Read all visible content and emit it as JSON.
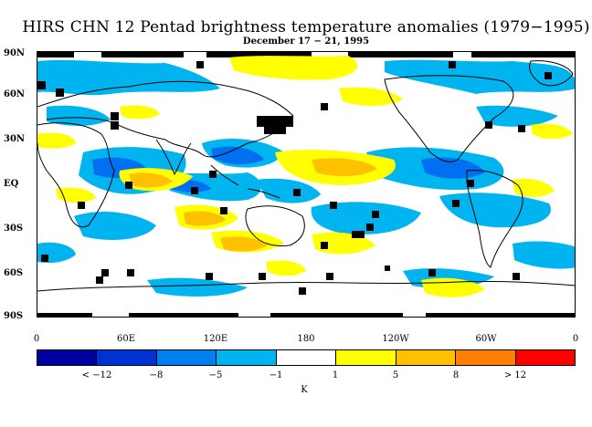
{
  "title": "HIRS CHN 12 Pentad brightness temperature anomalies (1979−1995)",
  "subtitle": "December 17 − 21, 1995",
  "lat_labels": [
    "90N",
    "60N",
    "30N",
    "EQ",
    "30S",
    "60S",
    "90S"
  ],
  "lon_labels": [
    "0",
    "60E",
    "120E",
    "180",
    "120W",
    "60W",
    "0"
  ],
  "colorbar": {
    "colors": [
      "#0000a0",
      "#0032d2",
      "#0080f0",
      "#00b4f0",
      "#ffffff",
      "#ffff00",
      "#ffc000",
      "#ff8000",
      "#ff0000"
    ],
    "labels": [
      "< −12",
      "−8",
      "−5",
      "−1",
      "1",
      "5",
      "8",
      "> 12"
    ],
    "unit": "K"
  },
  "colors": {
    "cold_strong": "#0070f0",
    "cold": "#00b4f0",
    "warm": "#ffff00",
    "warm_strong": "#ffc000",
    "missing": "#000000",
    "coast": "#000000"
  }
}
